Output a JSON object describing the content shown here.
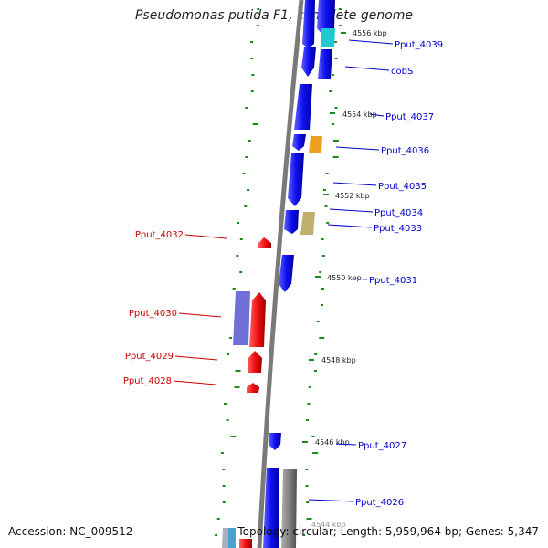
{
  "title": "Pseudomonas putida F1, complete genome",
  "accession": "Accession: NC_009512",
  "topology": "Topology: circular; Length: 5,959,964 bp; Genes: 5,347",
  "position_labels": [
    "4556 kbp",
    "4554 kbp",
    "4552 kbp",
    "4550 kbp",
    "4548 kbp",
    "4546 kbp",
    "4544 kbp"
  ],
  "gene_labels_right": [
    "Pput_4039",
    "cobS",
    "Pput_4037",
    "Pput_4036",
    "Pput_4035",
    "Pput_4034",
    "Pput_4033",
    "Pput_4031",
    "Pput_4027",
    "Pput_4026"
  ],
  "gene_labels_left": [
    "Pput_4032",
    "Pput_4030",
    "Pput_4029",
    "Pput_4028"
  ],
  "colors": {
    "forward": "#1010e8",
    "reverse": "#e81010",
    "backbone": "#808080",
    "gc_dots": "#1a8a1a",
    "label_blue": "#0000cc",
    "label_red": "#cc0000",
    "cyan": "#20c8d0",
    "orange": "#f0a020",
    "khaki": "#c0b070",
    "violet": "#7070d8",
    "grey_feature": "#808080"
  }
}
